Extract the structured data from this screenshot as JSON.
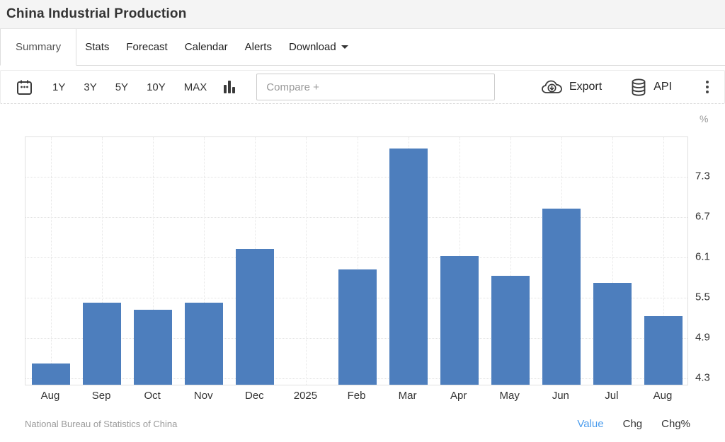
{
  "header": {
    "title": "China Industrial Production"
  },
  "tabs": {
    "items": [
      {
        "label": "Summary",
        "active": true
      },
      {
        "label": "Stats",
        "active": false
      },
      {
        "label": "Forecast",
        "active": false
      },
      {
        "label": "Calendar",
        "active": false
      },
      {
        "label": "Alerts",
        "active": false
      },
      {
        "label": "Download",
        "active": false
      }
    ]
  },
  "toolbar": {
    "ranges": [
      "1Y",
      "3Y",
      "5Y",
      "10Y",
      "MAX"
    ],
    "compare_placeholder": "Compare +",
    "export_label": "Export",
    "api_label": "API"
  },
  "chart_data": {
    "type": "bar",
    "title": "China Industrial Production",
    "unit": "%",
    "categories": [
      "Aug",
      "Sep",
      "Oct",
      "Nov",
      "Dec",
      "2025",
      "Feb",
      "Mar",
      "Apr",
      "May",
      "Jun",
      "Jul",
      "Aug"
    ],
    "values": [
      4.5,
      5.4,
      5.3,
      5.4,
      6.2,
      null,
      5.9,
      7.7,
      6.1,
      5.8,
      6.8,
      5.7,
      5.2
    ],
    "yticks": [
      4.3,
      4.9,
      5.5,
      6.1,
      6.7,
      7.3
    ],
    "ylim": [
      4.18,
      7.89
    ],
    "bar_color": "#4d7ebd",
    "grid": true,
    "axis_side": "right",
    "legend": null
  },
  "footer": {
    "source": "National Bureau of Statistics of China",
    "modes": [
      {
        "label": "Value",
        "active": true
      },
      {
        "label": "Chg",
        "active": false
      },
      {
        "label": "Chg%",
        "active": false
      }
    ]
  }
}
